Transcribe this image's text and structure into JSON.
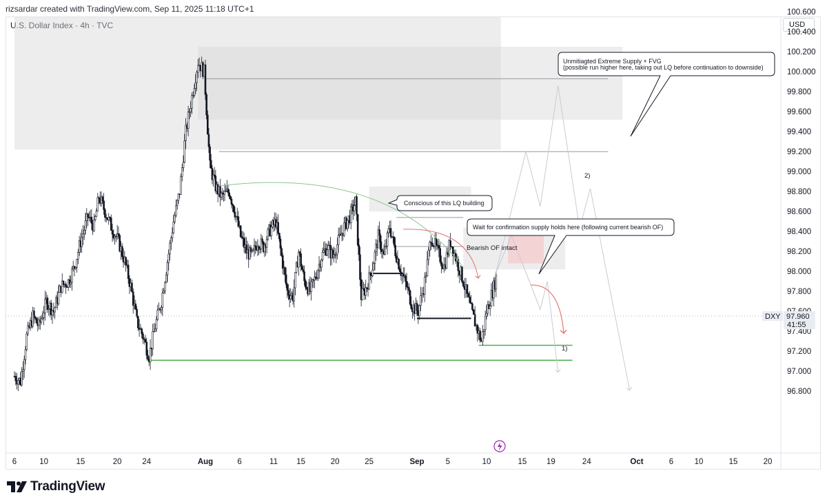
{
  "header": {
    "caption": "rizsardar created with TradingView.com, Sep 11, 2025 11:18 UTC+1",
    "symbol_line": "U.S. Dollar Index · 4h · TVC",
    "currency": "USD",
    "logo_text": "TradingView"
  },
  "colors": {
    "candle": "#131722",
    "zone_grey": "#d6d6d6",
    "zone_pink": "#f7c7c9",
    "green_level": "#4caf50",
    "red_arrow": "#e57373",
    "projection": "#c8cbd2",
    "price_label_bg": "#e9ecf1"
  },
  "price_box": {
    "symbol": "DXY",
    "price": "97.960",
    "countdown": "41:55"
  },
  "annotations": {
    "supply_line1": "Unmitiagted Extreme Supply + FVG",
    "supply_line2": "(possible run higher here, taking out LQ before continuation to downside)",
    "lq": "Conscious of this LQ building",
    "confirm": "Wait for confirmation supply holds here (following current bearish OF)",
    "bearish_of": "Bearish OF intact",
    "scenario_2": "2)",
    "scenario_1": "1)"
  },
  "chart_data": {
    "type": "candlestick",
    "title": "U.S. Dollar Index · 4h · TVC",
    "symbol": "DXY",
    "timeframe": "4h",
    "y_axis": {
      "ticks": [
        "100.600",
        "100.400",
        "100.200",
        "100.000",
        "99.800",
        "99.600",
        "99.400",
        "99.200",
        "99.000",
        "98.800",
        "98.600",
        "98.400",
        "98.200",
        "98.000",
        "97.800",
        "97.600",
        "97.400",
        "97.200",
        "97.000",
        "96.800"
      ],
      "range": [
        96.75,
        100.7
      ],
      "currency": "USD"
    },
    "x_axis": {
      "ticks": [
        {
          "label": "6",
          "date": "2025-07-06"
        },
        {
          "label": "10",
          "date": "2025-07-10"
        },
        {
          "label": "15",
          "date": "2025-07-15"
        },
        {
          "label": "20",
          "date": "2025-07-20"
        },
        {
          "label": "24",
          "date": "2025-07-24"
        },
        {
          "label": "Aug",
          "date": "2025-08-01",
          "bold": true
        },
        {
          "label": "6",
          "date": "2025-08-06"
        },
        {
          "label": "11",
          "date": "2025-08-11"
        },
        {
          "label": "15",
          "date": "2025-08-15"
        },
        {
          "label": "20",
          "date": "2025-08-20"
        },
        {
          "label": "25",
          "date": "2025-08-25"
        },
        {
          "label": "Sep",
          "date": "2025-09-01",
          "bold": true
        },
        {
          "label": "5",
          "date": "2025-09-05"
        },
        {
          "label": "10",
          "date": "2025-09-10"
        },
        {
          "label": "15",
          "date": "2025-09-15"
        },
        {
          "label": "19",
          "date": "2025-09-19"
        },
        {
          "label": "24",
          "date": "2025-09-24"
        },
        {
          "label": "Oct",
          "date": "2025-10-01",
          "bold": true
        },
        {
          "label": "6",
          "date": "2025-10-06"
        },
        {
          "label": "10",
          "date": "2025-10-10"
        },
        {
          "label": "15",
          "date": "2025-10-15"
        },
        {
          "label": "20",
          "date": "2025-10-20"
        }
      ]
    },
    "last_price": 97.96,
    "price_path": [
      [
        "2025-07-06T00:00",
        96.95
      ],
      [
        "2025-07-06T20:00",
        96.9
      ],
      [
        "2025-07-07T16:00",
        97.35
      ],
      [
        "2025-07-08T12:00",
        97.55
      ],
      [
        "2025-07-09T08:00",
        97.45
      ],
      [
        "2025-07-10T08:00",
        97.7
      ],
      [
        "2025-07-11T08:00",
        97.6
      ],
      [
        "2025-07-12T08:00",
        97.85
      ],
      [
        "2025-07-13T08:00",
        97.9
      ],
      [
        "2025-07-14T04:00",
        98.05
      ],
      [
        "2025-07-15T00:00",
        98.3
      ],
      [
        "2025-07-16T00:00",
        98.55
      ],
      [
        "2025-07-16T20:00",
        98.45
      ],
      [
        "2025-07-17T12:00",
        98.75
      ],
      [
        "2025-07-18T08:00",
        98.6
      ],
      [
        "2025-07-19T04:00",
        98.45
      ],
      [
        "2025-07-20T04:00",
        98.3
      ],
      [
        "2025-07-21T00:00",
        98.1
      ],
      [
        "2025-07-21T20:00",
        97.85
      ],
      [
        "2025-07-22T16:00",
        97.5
      ],
      [
        "2025-07-23T12:00",
        97.35
      ],
      [
        "2025-07-24T08:00",
        97.15
      ],
      [
        "2025-07-25T04:00",
        97.45
      ],
      [
        "2025-07-26T00:00",
        97.7
      ],
      [
        "2025-07-26T20:00",
        98.1
      ],
      [
        "2025-07-27T16:00",
        98.5
      ],
      [
        "2025-07-28T12:00",
        98.8
      ],
      [
        "2025-07-29T08:00",
        99.4
      ],
      [
        "2025-07-30T04:00",
        99.75
      ],
      [
        "2025-07-31T00:00",
        100.1
      ],
      [
        "2025-07-31T20:00",
        100.0
      ],
      [
        "2025-08-01T16:00",
        99.05
      ],
      [
        "2025-08-02T12:00",
        98.85
      ],
      [
        "2025-08-03T08:00",
        98.75
      ],
      [
        "2025-08-04T12:00",
        98.8
      ],
      [
        "2025-08-05T08:00",
        98.6
      ],
      [
        "2025-08-06T04:00",
        98.35
      ],
      [
        "2025-08-07T00:00",
        98.2
      ],
      [
        "2025-08-07T20:00",
        98.15
      ],
      [
        "2025-08-08T16:00",
        98.3
      ],
      [
        "2025-08-09T12:00",
        98.25
      ],
      [
        "2025-08-10T08:00",
        98.4
      ],
      [
        "2025-08-11T08:00",
        98.5
      ],
      [
        "2025-08-12T04:00",
        98.15
      ],
      [
        "2025-08-13T00:00",
        97.8
      ],
      [
        "2025-08-13T20:00",
        97.75
      ],
      [
        "2025-08-14T16:00",
        98.2
      ],
      [
        "2025-08-15T12:00",
        97.9
      ],
      [
        "2025-08-16T08:00",
        97.8
      ],
      [
        "2025-08-17T04:00",
        97.95
      ],
      [
        "2025-08-18T00:00",
        98.15
      ],
      [
        "2025-08-18T20:00",
        98.25
      ],
      [
        "2025-08-19T16:00",
        98.15
      ],
      [
        "2025-08-20T12:00",
        98.3
      ],
      [
        "2025-08-21T08:00",
        98.45
      ],
      [
        "2025-08-22T04:00",
        98.55
      ],
      [
        "2025-08-23T00:00",
        98.7
      ],
      [
        "2025-08-23T20:00",
        97.75
      ],
      [
        "2025-08-24T16:00",
        97.85
      ],
      [
        "2025-08-25T12:00",
        98.05
      ],
      [
        "2025-08-26T08:00",
        98.35
      ],
      [
        "2025-08-27T04:00",
        98.15
      ],
      [
        "2025-08-28T00:00",
        98.45
      ],
      [
        "2025-08-28T20:00",
        98.2
      ],
      [
        "2025-08-29T16:00",
        98.0
      ],
      [
        "2025-08-30T12:00",
        97.85
      ],
      [
        "2025-08-31T08:00",
        97.65
      ],
      [
        "2025-09-01T04:00",
        97.6
      ],
      [
        "2025-09-02T00:00",
        97.9
      ],
      [
        "2025-09-02T20:00",
        98.35
      ],
      [
        "2025-09-03T16:00",
        98.2
      ],
      [
        "2025-09-04T12:00",
        98.05
      ],
      [
        "2025-09-05T08:00",
        98.3
      ],
      [
        "2025-09-06T04:00",
        98.1
      ],
      [
        "2025-09-07T00:00",
        97.9
      ],
      [
        "2025-09-07T20:00",
        97.65
      ],
      [
        "2025-09-08T16:00",
        97.45
      ],
      [
        "2025-09-09T08:00",
        97.3
      ],
      [
        "2025-09-10T00:00",
        97.6
      ],
      [
        "2025-09-10T20:00",
        97.8
      ],
      [
        "2025-09-11T10:00",
        97.96
      ]
    ],
    "zones": [
      {
        "type": "supply",
        "from": "2025-07-06",
        "to": "2025-09-12",
        "low": 99.22,
        "high": 100.55
      },
      {
        "type": "supply",
        "from": "2025-07-31",
        "to": "2025-09-29",
        "low": 99.52,
        "high": 100.25
      },
      {
        "type": "supply",
        "from": "2025-08-25",
        "to": "2025-09-08",
        "low": 98.6,
        "high": 98.85
      },
      {
        "type": "supply",
        "from": "2025-09-07",
        "to": "2025-09-21",
        "low": 98.02,
        "high": 98.44
      },
      {
        "type": "supply",
        "from": "2025-09-13",
        "to": "2025-09-18",
        "low": 98.08,
        "high": 98.41
      }
    ],
    "levels": [
      {
        "from": "2025-08-01",
        "to": "2025-09-27",
        "price": 99.93
      },
      {
        "from": "2025-08-03",
        "to": "2025-09-27",
        "price": 99.2
      },
      {
        "from": "2025-08-29",
        "to": "2025-09-07",
        "price": 98.54
      },
      {
        "from": "2025-08-29",
        "to": "2025-09-07",
        "price": 98.25
      },
      {
        "from": "2025-08-25",
        "to": "2025-08-30",
        "price": 97.98
      },
      {
        "from": "2025-09-01",
        "to": "2025-09-08",
        "price": 97.53
      },
      {
        "from": "2025-07-24",
        "to": "2025-09-22",
        "price": 97.11
      },
      {
        "from": "2025-09-09",
        "to": "2025-09-22",
        "price": 97.26
      }
    ],
    "projections": [
      {
        "name": "2)",
        "path": [
          [
            "2025-09-11T08:00",
            97.99
          ],
          [
            "2025-09-15T12:00",
            99.2
          ],
          [
            "2025-09-17T12:00",
            98.65
          ],
          [
            "2025-09-20T00:00",
            99.86
          ],
          [
            "2025-09-23T00:00",
            98.43
          ],
          [
            "2025-09-24T12:00",
            98.83
          ],
          [
            "2025-09-30T00:00",
            96.81
          ]
        ]
      },
      {
        "name": "1)",
        "path": [
          [
            "2025-09-11T08:00",
            97.99
          ],
          [
            "2025-09-13T12:00",
            98.36
          ],
          [
            "2025-09-17T12:00",
            97.62
          ],
          [
            "2025-09-18T12:00",
            97.9
          ],
          [
            "2025-09-20T00:00",
            96.99
          ]
        ]
      }
    ]
  }
}
